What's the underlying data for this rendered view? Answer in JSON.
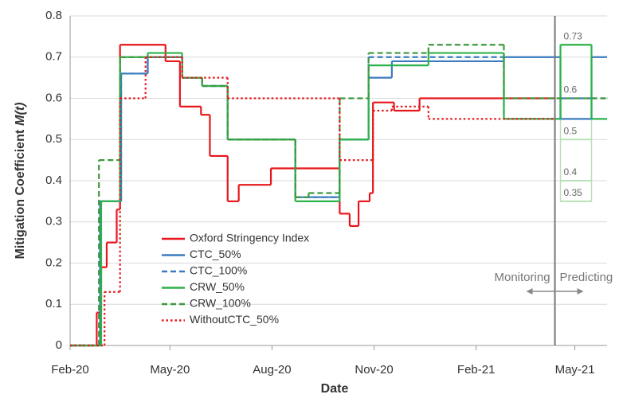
{
  "chart_data": {
    "type": "line",
    "step": "post",
    "xlabel": "Date",
    "ylabel": [
      "Mitigation Coefficient",
      "M(t)"
    ],
    "xlim": [
      0,
      484
    ],
    "xticks": [
      {
        "value": 0,
        "label": "Feb-20"
      },
      {
        "value": 90,
        "label": "May-20"
      },
      {
        "value": 182,
        "label": "Aug-20"
      },
      {
        "value": 274,
        "label": "Nov-20"
      },
      {
        "value": 366,
        "label": "Feb-21"
      },
      {
        "value": 455,
        "label": "May-21"
      }
    ],
    "ylim": [
      0,
      0.8
    ],
    "yticks": [
      0,
      0.1,
      0.2,
      0.3,
      0.4,
      0.5,
      0.6,
      0.7,
      0.8
    ],
    "grid": true,
    "legend": "lower-left",
    "series": [
      {
        "name": "Oxford Stringency Index",
        "color": "#e8161b",
        "dash": "solid",
        "x": [
          0,
          24,
          28,
          33,
          42,
          45,
          86,
          99,
          118,
          126,
          142,
          152,
          181,
          243,
          252,
          260,
          270,
          273,
          292,
          315,
          437
        ],
        "values": [
          0,
          0.08,
          0.19,
          0.25,
          0.33,
          0.73,
          0.69,
          0.58,
          0.56,
          0.46,
          0.35,
          0.39,
          0.43,
          0.32,
          0.29,
          0.35,
          0.37,
          0.59,
          0.57,
          0.6,
          0.6
        ]
      },
      {
        "name": "CTC_50%",
        "color": "#3a7bbf",
        "dash": "solid",
        "x": [
          0,
          27,
          46,
          70,
          101,
          119,
          142,
          203,
          243,
          269,
          290,
          391,
          442,
          470,
          484
        ],
        "values": [
          0,
          0.35,
          0.66,
          0.7,
          0.65,
          0.63,
          0.5,
          0.36,
          0.5,
          0.65,
          0.69,
          0.7,
          0.55,
          0.7,
          0.7
        ]
      },
      {
        "name": "CTC_100%",
        "color": "#3a7bbf",
        "dash": "dashed",
        "x": [
          0,
          27,
          46,
          70,
          101,
          119,
          142,
          203,
          243,
          269,
          391,
          442,
          470,
          484
        ],
        "values": [
          0,
          0.35,
          0.66,
          0.7,
          0.65,
          0.63,
          0.5,
          0.36,
          0.5,
          0.7,
          0.55,
          0.6,
          0.6,
          0.6
        ]
      },
      {
        "name": "CRW_50%",
        "color": "#2db34a",
        "dash": "solid",
        "x": [
          0,
          28,
          45,
          70,
          101,
          119,
          142,
          203,
          243,
          269,
          323,
          391,
          442,
          470,
          484
        ],
        "values": [
          0,
          0.35,
          0.7,
          0.71,
          0.65,
          0.63,
          0.5,
          0.35,
          0.5,
          0.68,
          0.71,
          0.55,
          0.73,
          0.55,
          0.55
        ]
      },
      {
        "name": "CRW_100%",
        "color": "#3d9a3d",
        "dash": "dashed",
        "x": [
          0,
          26,
          45,
          70,
          101,
          119,
          142,
          203,
          215,
          243,
          269,
          323,
          391,
          484
        ],
        "values": [
          0,
          0.45,
          0.7,
          0.7,
          0.65,
          0.63,
          0.5,
          0.36,
          0.37,
          0.6,
          0.71,
          0.73,
          0.6,
          0.6
        ]
      },
      {
        "name": "WithoutCTC_50%",
        "color": "#e8161b",
        "dash": "dotted",
        "x": [
          0,
          31,
          45,
          68,
          101,
          142,
          243,
          273,
          290,
          323,
          437
        ],
        "values": [
          0,
          0.13,
          0.6,
          0.7,
          0.65,
          0.6,
          0.45,
          0.57,
          0.58,
          0.55,
          0.55
        ]
      }
    ],
    "divider_x": 437,
    "annotations": [
      "Monitoring",
      "Predicting"
    ],
    "prediction_levels": [
      0.73,
      0.6,
      0.5,
      0.4,
      0.35
    ],
    "prediction_range": [
      442,
      470
    ]
  }
}
